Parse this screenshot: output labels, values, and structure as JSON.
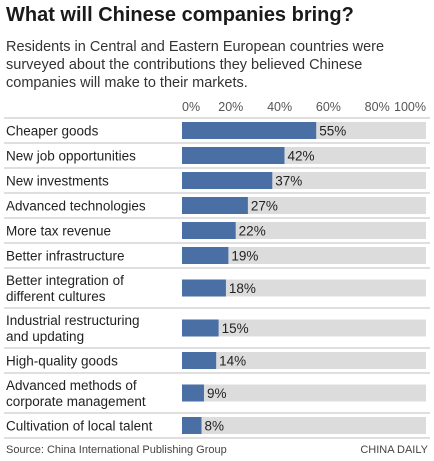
{
  "title": "What will Chinese companies bring?",
  "subtitle": "Residents in Central and Eastern European countries were surveyed about the contributions they believed Chinese companies will make to their markets.",
  "source": "Source: China International Publishing Group",
  "credit": "CHINA DAILY",
  "colors": {
    "bar": "#4a6fa5",
    "track": "#dcdcdc",
    "divider": "#bfbfbf"
  },
  "chart_data": {
    "type": "bar",
    "orientation": "horizontal",
    "xlim": [
      0,
      100
    ],
    "ticks": [
      "0%",
      "20%",
      "40%",
      "60%",
      "80%",
      "100%"
    ],
    "tick_values": [
      0,
      20,
      40,
      60,
      80,
      100
    ],
    "categories": [
      [
        "Cheaper goods"
      ],
      [
        "New job opportunities"
      ],
      [
        "New investments"
      ],
      [
        "Advanced technologies"
      ],
      [
        "More tax revenue"
      ],
      [
        "Better infrastructure"
      ],
      [
        "Better integration of",
        "different cultures"
      ],
      [
        "Industrial restructuring",
        "and updating"
      ],
      [
        "High-quality goods"
      ],
      [
        "Advanced methods of",
        "corporate management"
      ],
      [
        "Cultivation of local talent"
      ]
    ],
    "values": [
      55,
      42,
      37,
      27,
      22,
      19,
      18,
      15,
      14,
      9,
      8
    ],
    "value_labels": [
      "55%",
      "42%",
      "37%",
      "27%",
      "22%",
      "19%",
      "18%",
      "15%",
      "14%",
      "9%",
      "8%"
    ]
  }
}
